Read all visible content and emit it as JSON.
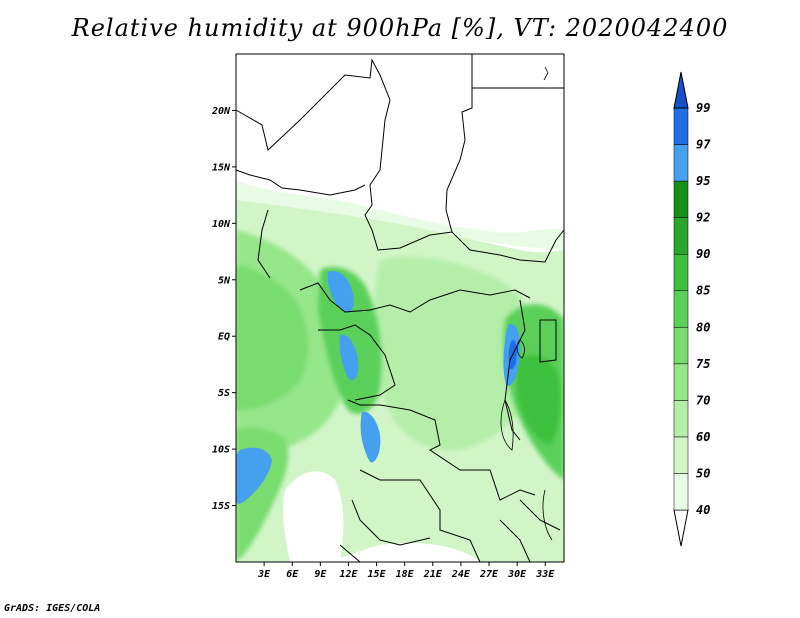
{
  "title": "Relative humidity at 900hPa [%], VT: 2020042400",
  "footer": "GrADS: IGES/COLA",
  "map": {
    "lon_range": [
      0,
      35
    ],
    "lat_range": [
      -20,
      25
    ],
    "lon_ticks": [
      "3E",
      "6E",
      "9E",
      "12E",
      "15E",
      "18E",
      "21E",
      "24E",
      "27E",
      "30E",
      "33E"
    ],
    "lat_ticks": [
      "20N",
      "15N",
      "10N",
      "5N",
      "EQ",
      "5S",
      "10S",
      "15S"
    ],
    "lon_tick_values": [
      3,
      6,
      9,
      12,
      15,
      18,
      21,
      24,
      27,
      30,
      33
    ],
    "lat_tick_values": [
      20,
      15,
      10,
      5,
      0,
      -5,
      -10,
      -15
    ]
  },
  "colorbar": {
    "levels": [
      "40",
      "50",
      "60",
      "70",
      "75",
      "80",
      "85",
      "90",
      "92",
      "95",
      "97",
      "99"
    ],
    "colors": [
      "#ffffff",
      "#e8fbe4",
      "#d2f5c8",
      "#b4eea8",
      "#96e68a",
      "#78dc6e",
      "#5ad05a",
      "#3cc03c",
      "#28a828",
      "#149014",
      "#46a0f0",
      "#1e6ee6",
      "#1450c8"
    ]
  },
  "colors": {
    "background": "#ffffff",
    "border": "#000000"
  }
}
